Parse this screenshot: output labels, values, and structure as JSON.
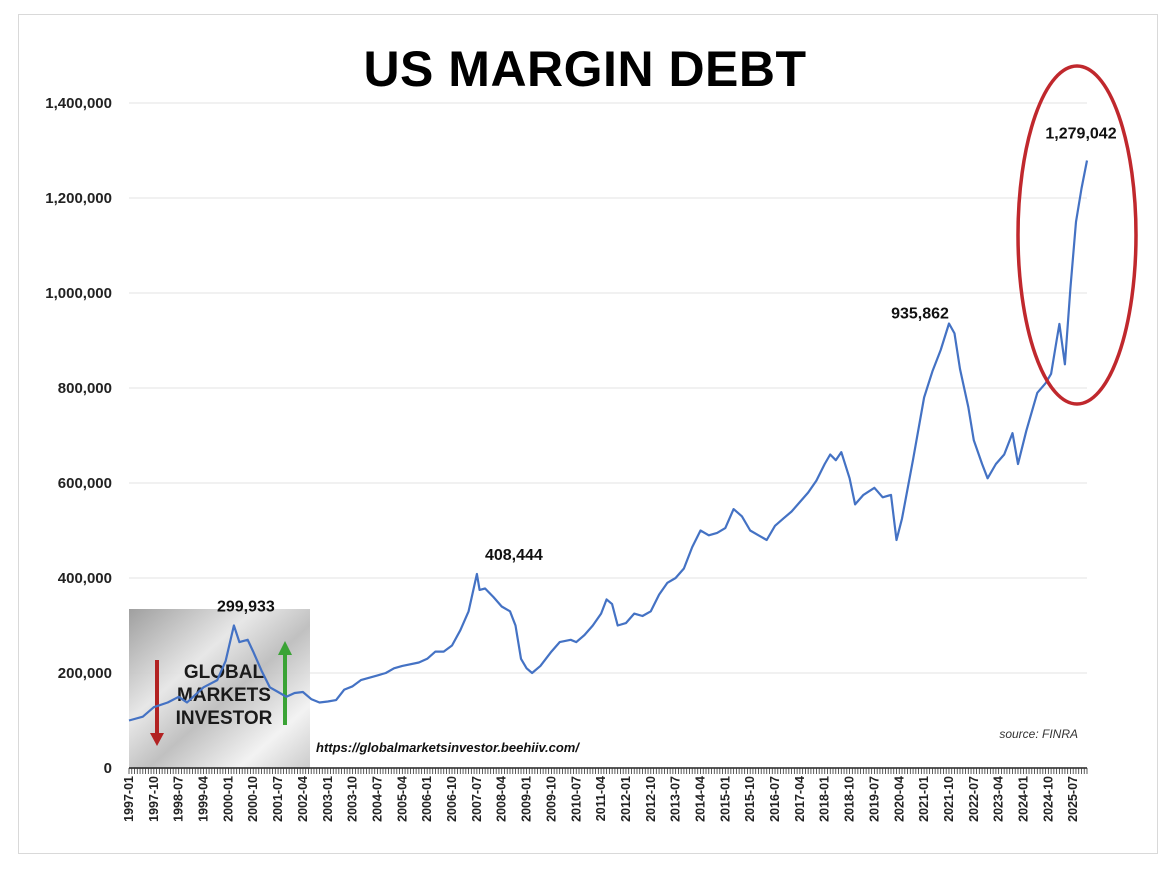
{
  "chart_data": {
    "type": "line",
    "title": "US MARGIN DEBT",
    "xlabel": "",
    "ylabel": "",
    "ylim": [
      0,
      1400000
    ],
    "yticks": [
      0,
      200000,
      400000,
      600000,
      800000,
      1000000,
      1200000,
      1400000
    ],
    "ytick_labels": [
      "0",
      "200,000",
      "400,000",
      "600,000",
      "800,000",
      "1,000,000",
      "1,200,000",
      "1,400,000"
    ],
    "xlim_months": [
      "1997-01",
      "2025-12"
    ],
    "xtick_labels": [
      "1997-01",
      "1997-10",
      "1998-07",
      "1999-04",
      "2000-01",
      "2000-10",
      "2001-07",
      "2002-04",
      "2003-01",
      "2003-10",
      "2004-07",
      "2005-04",
      "2006-01",
      "2006-10",
      "2007-07",
      "2008-04",
      "2009-01",
      "2009-10",
      "2010-07",
      "2011-04",
      "2012-01",
      "2012-10",
      "2013-07",
      "2014-04",
      "2015-01",
      "2015-10",
      "2016-07",
      "2017-04",
      "2018-01",
      "2018-10",
      "2019-07",
      "2020-04",
      "2021-01",
      "2021-10",
      "2022-07",
      "2023-04",
      "2024-01",
      "2024-10",
      "2025-07"
    ],
    "series": [
      {
        "name": "US Margin Debt",
        "color": "#4472c4",
        "points": [
          [
            "1997-01",
            100000
          ],
          [
            "1997-06",
            108000
          ],
          [
            "1997-10",
            128000
          ],
          [
            "1998-03",
            138000
          ],
          [
            "1998-07",
            150000
          ],
          [
            "1998-10",
            138000
          ],
          [
            "1999-04",
            170000
          ],
          [
            "1999-09",
            185000
          ],
          [
            "1999-12",
            225000
          ],
          [
            "2000-03",
            299933
          ],
          [
            "2000-05",
            265000
          ],
          [
            "2000-08",
            270000
          ],
          [
            "2000-10",
            245000
          ],
          [
            "2001-01",
            205000
          ],
          [
            "2001-04",
            170000
          ],
          [
            "2001-07",
            160000
          ],
          [
            "2001-10",
            150000
          ],
          [
            "2002-01",
            158000
          ],
          [
            "2002-04",
            160000
          ],
          [
            "2002-07",
            145000
          ],
          [
            "2002-10",
            138000
          ],
          [
            "2003-01",
            140000
          ],
          [
            "2003-04",
            143000
          ],
          [
            "2003-07",
            165000
          ],
          [
            "2003-10",
            172000
          ],
          [
            "2004-01",
            185000
          ],
          [
            "2004-07",
            195000
          ],
          [
            "2004-10",
            200000
          ],
          [
            "2005-01",
            210000
          ],
          [
            "2005-04",
            215000
          ],
          [
            "2005-10",
            222000
          ],
          [
            "2006-01",
            230000
          ],
          [
            "2006-04",
            245000
          ],
          [
            "2006-07",
            245000
          ],
          [
            "2006-10",
            258000
          ],
          [
            "2007-01",
            290000
          ],
          [
            "2007-04",
            330000
          ],
          [
            "2007-07",
            408444
          ],
          [
            "2007-08",
            375000
          ],
          [
            "2007-10",
            378000
          ],
          [
            "2008-01",
            360000
          ],
          [
            "2008-04",
            340000
          ],
          [
            "2008-07",
            330000
          ],
          [
            "2008-09",
            300000
          ],
          [
            "2008-11",
            230000
          ],
          [
            "2009-01",
            210000
          ],
          [
            "2009-03",
            200000
          ],
          [
            "2009-06",
            215000
          ],
          [
            "2009-10",
            245000
          ],
          [
            "2010-01",
            265000
          ],
          [
            "2010-05",
            270000
          ],
          [
            "2010-07",
            265000
          ],
          [
            "2010-10",
            280000
          ],
          [
            "2011-01",
            300000
          ],
          [
            "2011-04",
            325000
          ],
          [
            "2011-06",
            355000
          ],
          [
            "2011-08",
            345000
          ],
          [
            "2011-10",
            300000
          ],
          [
            "2012-01",
            305000
          ],
          [
            "2012-04",
            325000
          ],
          [
            "2012-07",
            320000
          ],
          [
            "2012-10",
            330000
          ],
          [
            "2013-01",
            365000
          ],
          [
            "2013-04",
            390000
          ],
          [
            "2013-07",
            400000
          ],
          [
            "2013-10",
            420000
          ],
          [
            "2014-01",
            465000
          ],
          [
            "2014-04",
            500000
          ],
          [
            "2014-07",
            490000
          ],
          [
            "2014-10",
            495000
          ],
          [
            "2015-01",
            505000
          ],
          [
            "2015-04",
            545000
          ],
          [
            "2015-07",
            530000
          ],
          [
            "2015-10",
            500000
          ],
          [
            "2016-01",
            490000
          ],
          [
            "2016-04",
            480000
          ],
          [
            "2016-07",
            510000
          ],
          [
            "2016-10",
            525000
          ],
          [
            "2017-01",
            540000
          ],
          [
            "2017-04",
            560000
          ],
          [
            "2017-07",
            580000
          ],
          [
            "2017-10",
            605000
          ],
          [
            "2018-01",
            640000
          ],
          [
            "2018-03",
            660000
          ],
          [
            "2018-05",
            648000
          ],
          [
            "2018-07",
            665000
          ],
          [
            "2018-10",
            610000
          ],
          [
            "2018-12",
            555000
          ],
          [
            "2019-03",
            575000
          ],
          [
            "2019-07",
            590000
          ],
          [
            "2019-10",
            570000
          ],
          [
            "2020-01",
            575000
          ],
          [
            "2020-03",
            480000
          ],
          [
            "2020-05",
            525000
          ],
          [
            "2020-09",
            650000
          ],
          [
            "2021-01",
            780000
          ],
          [
            "2021-04",
            835000
          ],
          [
            "2021-07",
            880000
          ],
          [
            "2021-10",
            935862
          ],
          [
            "2021-12",
            915000
          ],
          [
            "2022-02",
            840000
          ],
          [
            "2022-05",
            760000
          ],
          [
            "2022-07",
            690000
          ],
          [
            "2022-10",
            640000
          ],
          [
            "2022-12",
            610000
          ],
          [
            "2023-03",
            640000
          ],
          [
            "2023-06",
            660000
          ],
          [
            "2023-09",
            705000
          ],
          [
            "2023-11",
            640000
          ],
          [
            "2024-02",
            710000
          ],
          [
            "2024-06",
            790000
          ],
          [
            "2024-09",
            810000
          ],
          [
            "2024-11",
            830000
          ],
          [
            "2025-01",
            900000
          ],
          [
            "2025-02",
            935000
          ],
          [
            "2025-04",
            850000
          ],
          [
            "2025-06",
            1010000
          ],
          [
            "2025-08",
            1150000
          ],
          [
            "2025-10",
            1220000
          ],
          [
            "2025-12",
            1279042
          ]
        ]
      }
    ],
    "annotations": [
      {
        "label": "299,933",
        "x": "2000-03",
        "y": 299933
      },
      {
        "label": "408,444",
        "x": "2007-07",
        "y": 408444
      },
      {
        "label": "935,862",
        "x": "2021-10",
        "y": 935862
      },
      {
        "label": "1,279,042",
        "x": "2025-12",
        "y": 1279042
      }
    ],
    "source": "source: FINRA",
    "url": "https://globalmarketsinvestor.beehiiv.com/",
    "highlight_color": "#c0282d",
    "watermark_lines": [
      "GLOBAL",
      "MARKETS",
      "INVESTOR"
    ]
  }
}
